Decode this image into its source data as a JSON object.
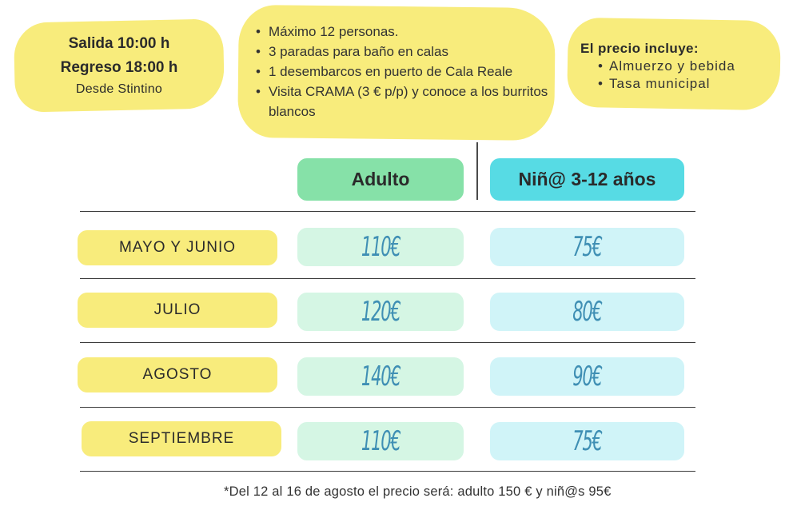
{
  "info_left": {
    "line1": "Salida 10:00 h",
    "line2": "Regreso 18:00 h",
    "line3": "Desde Stintino"
  },
  "info_mid": {
    "items": [
      "Máximo 12 personas.",
      "3 paradas para baño en calas",
      "1 desembarcos en puerto de Cala Reale",
      "Visita CRAMA (3 € p/p) y conoce a los burritos blancos"
    ]
  },
  "info_right": {
    "heading": "El precio incluye:",
    "items": [
      "Almuerzo  y bebida",
      "Tasa municipal"
    ]
  },
  "table": {
    "headers": {
      "adult": "Adulto",
      "child": "Niñ@ 3-12 años"
    },
    "rows": [
      {
        "month": "MAYO Y JUNIO",
        "adult": "110€",
        "child": "75€"
      },
      {
        "month": "JULIO",
        "adult": "120€",
        "child": "80€"
      },
      {
        "month": "AGOSTO",
        "adult": "140€",
        "child": "90€"
      },
      {
        "month": "SEPTIEMBRE",
        "adult": "110€",
        "child": "75€"
      }
    ]
  },
  "footnote": "*Del 12 al 16 de agosto el precio será: adulto 150 € y niñ@s 95€",
  "colors": {
    "yellow": "#f8ec7c",
    "adult_header": "#86e1a8",
    "child_header": "#57dbe4",
    "adult_cell": "#d5f6e4",
    "child_cell": "#d0f4f8",
    "price_text": "#3f8fb4"
  }
}
